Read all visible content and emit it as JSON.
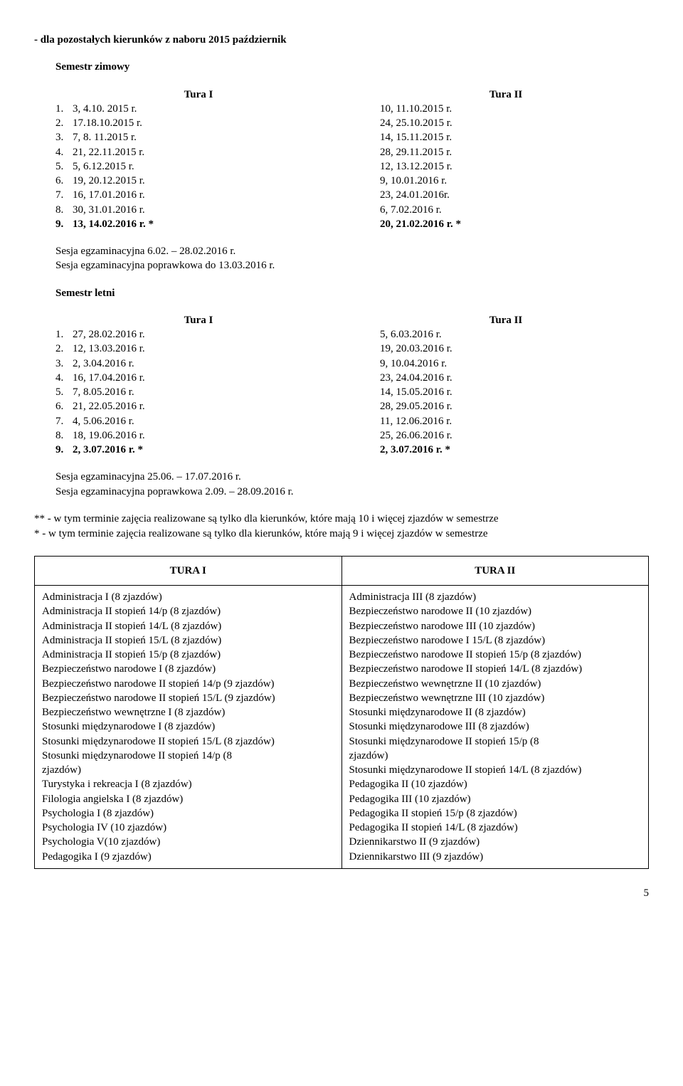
{
  "header_line": "- dla pozostałych kierunków z naboru 2015 październik",
  "semester_winter_label": "Semestr zimowy",
  "semester_summer_label": "Semestr letni",
  "tura_i_label": "Tura I",
  "tura_ii_label": "Tura II",
  "winter": {
    "left": [
      "3, 4.10. 2015 r.",
      "17.18.10.2015 r.",
      "7, 8. 11.2015 r.",
      "21, 22.11.2015 r.",
      "5, 6.12.2015 r.",
      "19, 20.12.2015 r.",
      "16, 17.01.2016 r.",
      "30, 31.01.2016 r.",
      "13, 14.02.2016 r.    *"
    ],
    "right": [
      "10, 11.10.2015 r.",
      "24, 25.10.2015 r.",
      "14, 15.11.2015 r.",
      "28, 29.11.2015 r.",
      "12, 13.12.2015 r.",
      "9, 10.01.2016 r.",
      "23, 24.01.2016r.",
      "6, 7.02.2016 r.",
      "20, 21.02.2016 r. *"
    ]
  },
  "sesja_winter_1": "Sesja egzaminacyjna 6.02. – 28.02.2016 r.",
  "sesja_winter_2": "Sesja egzaminacyjna poprawkowa do 13.03.2016 r.",
  "summer": {
    "left": [
      "27, 28.02.2016 r.",
      "12, 13.03.2016 r.",
      "2, 3.04.2016 r.",
      "16, 17.04.2016 r.",
      "7, 8.05.2016 r.",
      "21, 22.05.2016 r.",
      "4, 5.06.2016 r.",
      "18, 19.06.2016 r.",
      "2, 3.07.2016 r.    *"
    ],
    "right": [
      "5, 6.03.2016 r.",
      "19, 20.03.2016 r.",
      "9, 10.04.2016 r.",
      "23, 24.04.2016 r.",
      "14, 15.05.2016 r.",
      "28, 29.05.2016 r.",
      "11, 12.06.2016 r.",
      "25, 26.06.2016 r.",
      "2, 3.07.2016 r.    *"
    ]
  },
  "sesja_summer_1": "Sesja egzaminacyjna  25.06. – 17.07.2016 r.",
  "sesja_summer_2": "Sesja egzaminacyjna poprawkowa 2.09. – 28.09.2016 r.",
  "footnote_1": "** - w tym terminie zajęcia realizowane są tylko dla kierunków, które mają 10 i więcej zjazdów w semestrze",
  "footnote_2": "*   - w tym terminie zajęcia realizowane są tylko dla kierunków, które mają  9 i więcej zjazdów w semestrze",
  "tura_table": {
    "head_left": "TURA I",
    "head_right": "TURA II",
    "left": [
      "Administracja I (8 zjazdów)",
      "Administracja II stopień 14/p (8 zjazdów)",
      "Administracja II stopień 14/L (8 zjazdów)",
      "Administracja II stopień 15/L  (8 zjazdów)",
      "Administracja II stopień 15/p (8 zjazdów)",
      "Bezpieczeństwo narodowe I (8 zjazdów)",
      "Bezpieczeństwo narodowe II stopień 14/p (9 zjazdów)",
      "Bezpieczeństwo narodowe II stopień 15/L (9 zjazdów)",
      "Bezpieczeństwo wewnętrzne I (8 zjazdów)",
      "Stosunki międzynarodowe I  (8 zjazdów)",
      "Stosunki międzynarodowe II stopień 15/L (8 zjazdów)",
      "Stosunki międzynarodowe  II stopień 14/p (8",
      "zjazdów)",
      "Turystyka i rekreacja I  (8 zjazdów)",
      "Filologia angielska  I  (8 zjazdów)",
      "Psychologia I (8 zjazdów)",
      "Psychologia IV (10 zjazdów)",
      "Psychologia V(10 zjazdów)",
      "Pedagogika I (9 zjazdów)"
    ],
    "right": [
      "Administracja III (8 zjazdów)",
      "Bezpieczeństwo narodowe II (10 zjazdów)",
      "Bezpieczeństwo narodowe III (10 zjazdów)",
      "Bezpieczeństwo narodowe I 15/L (8 zjazdów)",
      "Bezpieczeństwo narodowe II stopień 15/p (8 zjazdów)",
      "Bezpieczeństwo narodowe II stopień 14/L (8 zjazdów)",
      "Bezpieczeństwo wewnętrzne II (10 zjazdów)",
      "Bezpieczeństwo wewnętrzne III (10 zjazdów)",
      "Stosunki międzynarodowe II  (8 zjazdów)",
      "Stosunki międzynarodowe III (8 zjazdów)",
      "Stosunki międzynarodowe  II stopień 15/p (8",
      "zjazdów)",
      "Stosunki międzynarodowe II stopień 14/L (8 zjazdów)",
      "Pedagogika II (10 zjazdów)",
      "Pedagogika III (10 zjazdów)",
      "Pedagogika II stopień 15/p (8 zjazdów)",
      "Pedagogika  II stopień 14/L (8 zjazdów)",
      "Dziennikarstwo II  (9 zjazdów)",
      "Dziennikarstwo III  (9 zjazdów)"
    ]
  },
  "page_number": "5"
}
